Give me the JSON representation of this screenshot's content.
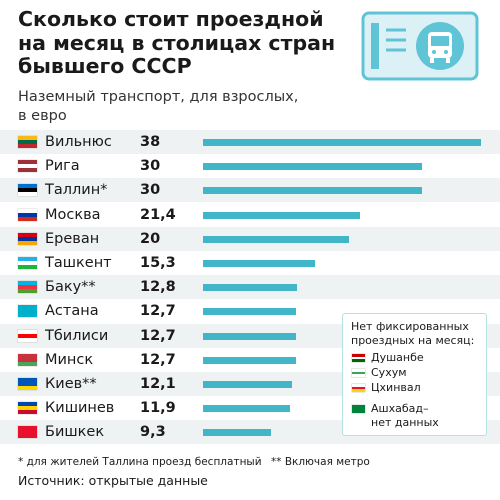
{
  "header": {
    "title": "Сколько стоит проездной\nна месяц в столицах стран\nбывшего СССР",
    "subtitle": "Наземный транспорт, для взрослых,\nв евро"
  },
  "icons": {
    "ticket": "bus-ticket-icon"
  },
  "colors": {
    "bar": "#41b6c9",
    "row_shade": "#eef2f3",
    "ticket": "#5fc4d6",
    "ticket_light": "#dcf1f5"
  },
  "chart_data": {
    "type": "bar",
    "orientation": "horizontal",
    "xlim": [
      0,
      38
    ],
    "categories": [
      "Вильнюс",
      "Рига",
      "Таллин*",
      "Москва",
      "Ереван",
      "Ташкент",
      "Баку**",
      "Астана",
      "Тбилиси",
      "Минск",
      "Киев**",
      "Кишинев",
      "Бишкек"
    ],
    "series": [
      {
        "values": [
          38,
          30,
          30,
          21.4,
          20,
          15.3,
          12.8,
          12.7,
          12.7,
          12.7,
          12.1,
          11.9,
          9.3
        ],
        "labels": [
          "38",
          "30",
          "30",
          "21,4",
          "20",
          "15,3",
          "12,8",
          "12,7",
          "12,7",
          "12,7",
          "12,1",
          "11,9",
          "9,3"
        ]
      }
    ],
    "flags": [
      [
        "#fdb913",
        "#006a44",
        "#c1272d"
      ],
      [
        "#9e3039",
        "#ffffff",
        "#9e3039"
      ],
      [
        "#0072ce",
        "#000000",
        "#ffffff"
      ],
      [
        "#ffffff",
        "#0039a6",
        "#d52b1e"
      ],
      [
        "#d90012",
        "#0033a0",
        "#f2a800"
      ],
      [
        "#1eb5e6",
        "#ffffff",
        "#1eb53a"
      ],
      [
        "#00b5e2",
        "#ef3340",
        "#509e2f"
      ],
      [
        "#00afca",
        "#00afca",
        "#00afca"
      ],
      [
        "#ffffff",
        "#ff0000",
        "#ffffff"
      ],
      [
        "#c8313e",
        "#c8313e",
        "#4aa657"
      ],
      [
        "#0057b7",
        "#0057b7",
        "#ffd700"
      ],
      [
        "#0046ae",
        "#ffd200",
        "#cc092f"
      ],
      [
        "#e8112d",
        "#e8112d",
        "#e8112d"
      ]
    ]
  },
  "legend": {
    "title": "Нет фиксированных\nпроездных на месяц:",
    "items": [
      {
        "label": "Душанбе",
        "flag": [
          "#cc0000",
          "#ffffff",
          "#006600"
        ]
      },
      {
        "label": "Сухум",
        "flag": [
          "#ffffff",
          "#3aa655",
          "#ffffff"
        ]
      },
      {
        "label": "Цхинвал",
        "flag": [
          "#ffffff",
          "#e8112d",
          "#f9d616"
        ]
      },
      {
        "label": "Ашхабад–\nнет данных",
        "flag": [
          "#00843d",
          "#00843d",
          "#00843d"
        ]
      }
    ]
  },
  "footer": {
    "note1": "* для жителей Таллина проезд бесплатный",
    "note2": "** Включая метро",
    "source": "Источник: открытые данные"
  }
}
